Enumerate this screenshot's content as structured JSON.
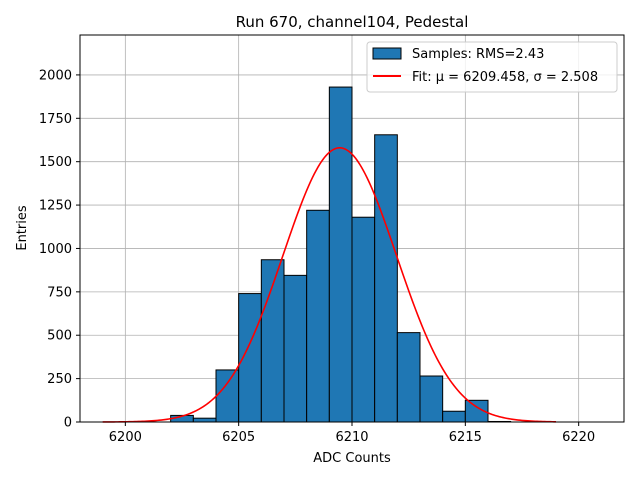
{
  "chart_data": {
    "type": "histogram",
    "title": "Run 670, channel104, Pedestal",
    "xlabel": "ADC Counts",
    "ylabel": "Entries",
    "xlim": [
      6198,
      6222
    ],
    "ylim": [
      0,
      2230
    ],
    "xticks": [
      6200,
      6205,
      6210,
      6215,
      6220
    ],
    "yticks": [
      0,
      250,
      500,
      750,
      1000,
      1250,
      1500,
      1750,
      2000
    ],
    "xtick_labels": [
      "6200",
      "6205",
      "6210",
      "6215",
      "6220"
    ],
    "ytick_labels": [
      "0",
      "250",
      "500",
      "750",
      "1000",
      "1250",
      "1500",
      "1750",
      "2000"
    ],
    "grid": true,
    "bar_color": "#1f77b4",
    "fit_color": "#ff0000",
    "bins": [
      {
        "start": 6202,
        "end": 6203,
        "count": 38
      },
      {
        "start": 6203,
        "end": 6204,
        "count": 22
      },
      {
        "start": 6204,
        "end": 6205,
        "count": 300
      },
      {
        "start": 6205,
        "end": 6206,
        "count": 740
      },
      {
        "start": 6206,
        "end": 6207,
        "count": 935
      },
      {
        "start": 6207,
        "end": 6208,
        "count": 845
      },
      {
        "start": 6208,
        "end": 6209,
        "count": 1220
      },
      {
        "start": 6209,
        "end": 6210,
        "count": 1930
      },
      {
        "start": 6210,
        "end": 6211,
        "count": 1180
      },
      {
        "start": 6211,
        "end": 6212,
        "count": 1655
      },
      {
        "start": 6212,
        "end": 6213,
        "count": 515
      },
      {
        "start": 6213,
        "end": 6214,
        "count": 265
      },
      {
        "start": 6214,
        "end": 6215,
        "count": 62
      },
      {
        "start": 6215,
        "end": 6216,
        "count": 125
      },
      {
        "start": 6216,
        "end": 6217,
        "count": 3
      }
    ],
    "fit": {
      "mu": 6209.458,
      "sigma": 2.508,
      "amplitude": 1580,
      "x_range": [
        6199,
        6219
      ]
    },
    "legend": {
      "position": "top-right",
      "entries": [
        {
          "name": "samples",
          "label": "Samples: RMS=2.43"
        },
        {
          "name": "fit",
          "label": "Fit: μ = 6209.458, σ = 2.508"
        }
      ]
    }
  }
}
